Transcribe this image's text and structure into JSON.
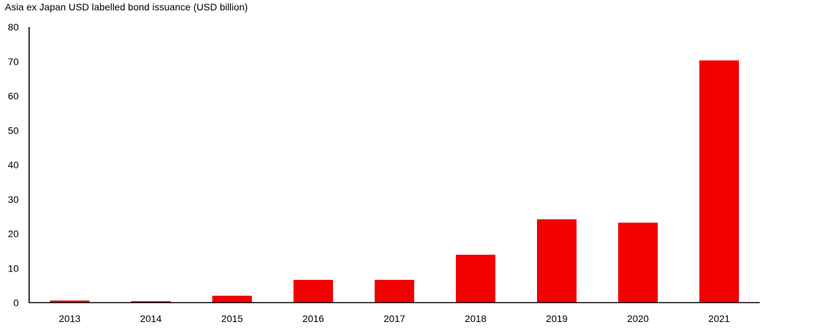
{
  "chart_data": {
    "type": "bar",
    "title": "Asia ex Japan USD labelled bond issuance (USD billion)",
    "xlabel": "",
    "ylabel": "",
    "categories": [
      "2013",
      "2014",
      "2015",
      "2016",
      "2017",
      "2018",
      "2019",
      "2020",
      "2021"
    ],
    "series": [
      {
        "values": [
          0.6,
          0.4,
          2.0,
          6.6,
          6.6,
          13.9,
          24.2,
          23.2,
          70.3
        ],
        "color": "#f20000"
      }
    ],
    "ylim": [
      0,
      80
    ],
    "yticks": [
      "0",
      "10",
      "20",
      "30",
      "40",
      "50",
      "60",
      "70",
      "80"
    ],
    "grid": false,
    "legend": "none",
    "axis_color": "#000000"
  }
}
